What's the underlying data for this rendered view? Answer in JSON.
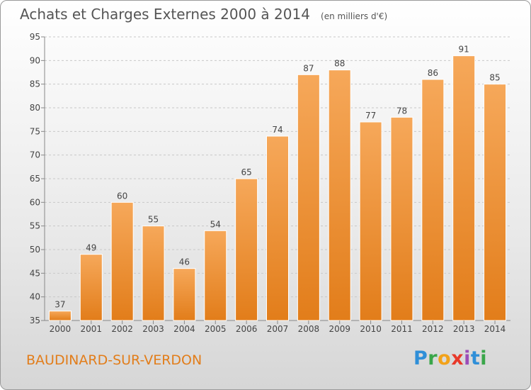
{
  "title": "Achats et Charges Externes 2000 à 2014",
  "unit": "(en milliers d'€)",
  "place": "BAUDINARD-SUR-VERDON",
  "logo": [
    "P",
    "r",
    "o",
    "x",
    "i",
    "t",
    "i"
  ],
  "colors": {
    "bar_light": "#f6a85a",
    "bar_dark": "#e27d1a",
    "accent": "#e27d1a"
  },
  "chart_data": {
    "type": "bar",
    "categories": [
      "2000",
      "2001",
      "2002",
      "2003",
      "2004",
      "2005",
      "2006",
      "2007",
      "2008",
      "2009",
      "2010",
      "2011",
      "2012",
      "2013",
      "2014"
    ],
    "values": [
      37,
      49,
      60,
      55,
      46,
      54,
      65,
      74,
      87,
      88,
      77,
      78,
      86,
      91,
      85
    ],
    "title": "Achats et Charges Externes 2000 à 2014",
    "xlabel": "",
    "ylabel": "",
    "ylim": [
      35,
      95
    ],
    "yticks": [
      35,
      40,
      45,
      50,
      55,
      60,
      65,
      70,
      75,
      80,
      85,
      90,
      95
    ],
    "grid": true
  }
}
